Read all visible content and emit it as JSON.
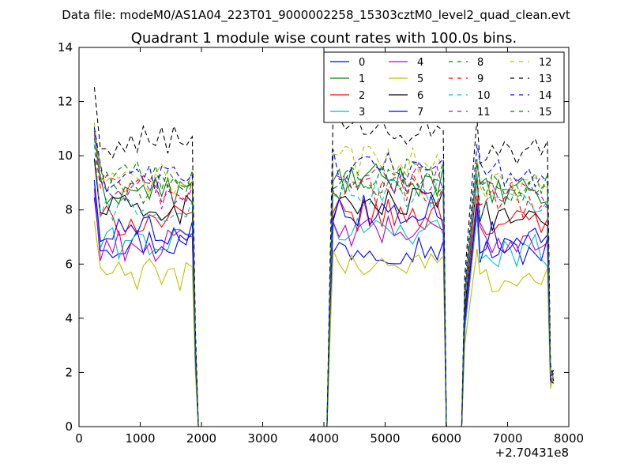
{
  "chart_data": {
    "type": "line",
    "suptitle": "Data file: modeM0/AS1A04_223T01_9000002258_15303cztM0_level2_quad_clean.evt",
    "title": "Quadrant 1 module wise count rates with 100.0s bins.",
    "xlabel": "",
    "ylabel": "",
    "x_offset_label": "+2.70431e8",
    "xlim": [
      0,
      8000
    ],
    "ylim": [
      0,
      14
    ],
    "xticks": [
      0,
      1000,
      2000,
      3000,
      4000,
      5000,
      6000,
      7000,
      8000
    ],
    "yticks": [
      0,
      2,
      4,
      6,
      8,
      10,
      12,
      14
    ],
    "legend_position": "top-right",
    "legend_columns": 4,
    "segments": [
      {
        "start": 250,
        "end": 1850
      },
      {
        "start": 4150,
        "end": 5950
      },
      {
        "start": 6550,
        "end": 7650
      }
    ],
    "gaps": [
      {
        "from": 1950,
        "to": 4050
      },
      {
        "from": 6050,
        "to": 6250
      }
    ],
    "edge_x": [
      1900,
      4100,
      6000,
      6300,
      6500,
      7700
    ],
    "tail_x": 7750,
    "series": [
      {
        "name": "0",
        "color": "#0000ff",
        "dash": "solid",
        "segment_means": [
          6.8,
          6.6,
          6.5
        ]
      },
      {
        "name": "1",
        "color": "#008000",
        "dash": "solid",
        "segment_means": [
          8.7,
          9.1,
          8.6
        ]
      },
      {
        "name": "2",
        "color": "#ff0000",
        "dash": "solid",
        "segment_means": [
          7.6,
          7.8,
          7.5
        ]
      },
      {
        "name": "3",
        "color": "#00bfbf",
        "dash": "solid",
        "segment_means": [
          6.8,
          7.3,
          6.5
        ]
      },
      {
        "name": "4",
        "color": "#bf00bf",
        "dash": "solid",
        "segment_means": [
          6.7,
          7.2,
          6.9
        ]
      },
      {
        "name": "5",
        "color": "#bfbf00",
        "dash": "solid",
        "segment_means": [
          5.6,
          6.0,
          5.5
        ]
      },
      {
        "name": "6",
        "color": "#000000",
        "dash": "solid",
        "segment_means": [
          8.0,
          8.2,
          7.8
        ]
      },
      {
        "name": "7",
        "color": "#0000ff",
        "dash": "solid",
        "segment_means": [
          7.3,
          8.0,
          7.0
        ]
      },
      {
        "name": "8",
        "color": "#008000",
        "dash": "dashed",
        "segment_means": [
          9.2,
          9.0,
          8.8
        ]
      },
      {
        "name": "9",
        "color": "#ff0000",
        "dash": "dashed",
        "segment_means": [
          8.8,
          8.8,
          8.3
        ]
      },
      {
        "name": "10",
        "color": "#00bfbf",
        "dash": "dashed",
        "segment_means": [
          8.1,
          8.6,
          8.1
        ]
      },
      {
        "name": "11",
        "color": "#bf00bf",
        "dash": "dashed",
        "segment_means": [
          8.6,
          9.2,
          8.6
        ]
      },
      {
        "name": "12",
        "color": "#bfbf00",
        "dash": "dashed",
        "segment_means": [
          9.1,
          9.8,
          8.9
        ]
      },
      {
        "name": "13",
        "color": "#000000",
        "dash": "dashed",
        "segment_means": [
          10.5,
          11.0,
          10.1
        ]
      },
      {
        "name": "14",
        "color": "#0000ff",
        "dash": "dashed",
        "segment_means": [
          9.1,
          9.7,
          9.3
        ]
      },
      {
        "name": "15",
        "color": "#008000",
        "dash": "dashed",
        "segment_means": [
          8.8,
          9.3,
          8.8
        ]
      }
    ]
  }
}
